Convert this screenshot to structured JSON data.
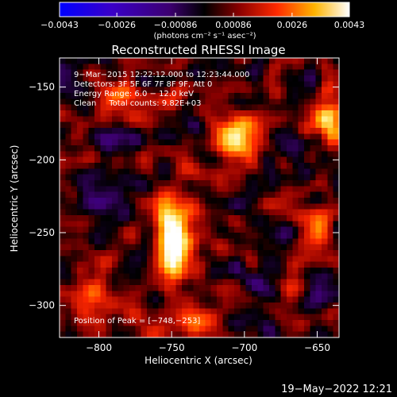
{
  "chart_data": {
    "type": "heatmap",
    "title": "Reconstructed RHESSI Image",
    "xlabel": "Heliocentric X (arcsec)",
    "ylabel": "Heliocentric Y (arcsec)",
    "xlim": [
      -827,
      -635
    ],
    "ylim": [
      -322,
      -130
    ],
    "x_ticks": [
      -800,
      -750,
      -700,
      -650
    ],
    "x_tick_labels": [
      "−800",
      "−750",
      "−700",
      "−650"
    ],
    "y_ticks": [
      -150,
      -200,
      -250,
      -300
    ],
    "y_tick_labels": [
      "−150",
      "−200",
      "−250",
      "−300"
    ],
    "colorbar": {
      "range": [
        -0.0043,
        0.0043
      ],
      "ticks": [
        -0.0043,
        -0.0026,
        -0.00086,
        0.00086,
        0.0026,
        0.0043
      ],
      "tick_labels": [
        "−0.0043",
        "−0.0026",
        "−0.00086",
        "0.00086",
        "0.0026",
        "0.0043"
      ],
      "unit_label": "(photons cm⁻² s⁻¹ asec⁻²)"
    },
    "sources": [
      {
        "x": -706,
        "y": -185,
        "sx": 10,
        "sy": 9,
        "amp": 1.0
      },
      {
        "x": -748,
        "y": -253,
        "sx": 9,
        "sy": 20,
        "amp": 1.05
      },
      {
        "x": -733,
        "y": -312,
        "sx": 8,
        "sy": 8,
        "amp": 0.55
      },
      {
        "x": -641,
        "y": -170,
        "sx": 7,
        "sy": 18,
        "amp": 0.55
      },
      {
        "x": -650,
        "y": -245,
        "sx": 9,
        "sy": 12,
        "amp": 0.5
      },
      {
        "x": -808,
        "y": -300,
        "sx": 10,
        "sy": 14,
        "amp": 0.4
      },
      {
        "x": -790,
        "y": -160,
        "sx": 14,
        "sy": 10,
        "amp": 0.35
      }
    ],
    "annotations": [
      "9−Mar−2015 12:22:12.000 to 12:23:44.000",
      "Detectors: 3F 5F 6F 7F 8F 9F, Att 0",
      "Energy Range: 6.0 − 12.0 keV",
      "Clean     Total counts: 9.82E+03"
    ],
    "peak_label": "Position of Peak = [−748,−253]",
    "timestamp": "19−May−2022 12:21"
  }
}
